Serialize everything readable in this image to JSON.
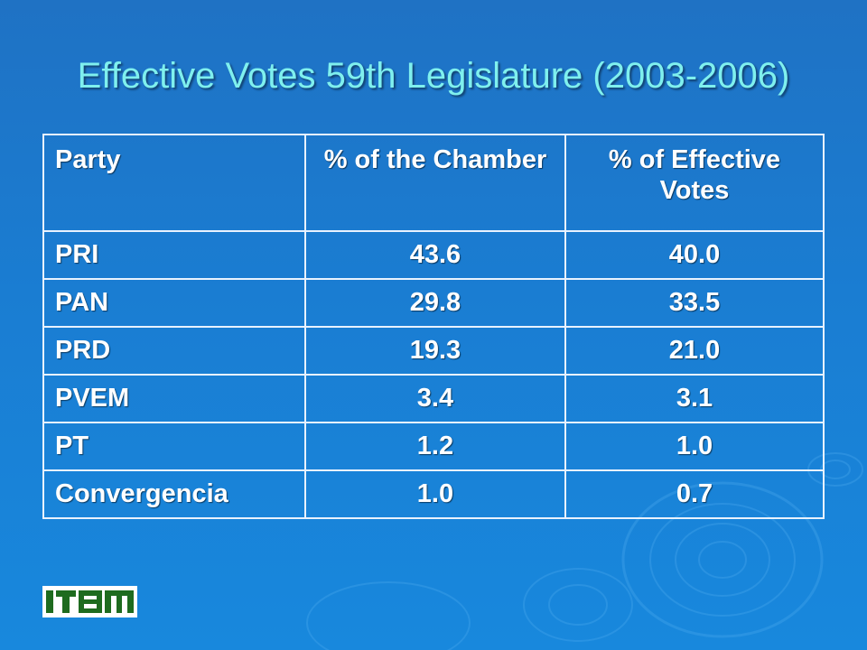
{
  "slide": {
    "title": "Effective Votes 59th Legislature (2003-2006)"
  },
  "table": {
    "headers": [
      "Party",
      "% of the Chamber",
      "% of Effective Votes"
    ],
    "rows": [
      [
        "PRI",
        "43.6",
        "40.0"
      ],
      [
        "PAN",
        "29.8",
        "33.5"
      ],
      [
        "PRD",
        "19.3",
        "21.0"
      ],
      [
        "PVEM",
        "3.4",
        "3.1"
      ],
      [
        "PT",
        "1.2",
        "1.0"
      ],
      [
        "Convergencia",
        "1.0",
        "0.7"
      ]
    ]
  },
  "logo": {
    "text": "ITAM",
    "color": "#1e6b1f"
  },
  "colors": {
    "title": "#7ff0ee",
    "background": "#1a7dd2",
    "text": "#ffffff",
    "border": "#e8f2ff"
  }
}
